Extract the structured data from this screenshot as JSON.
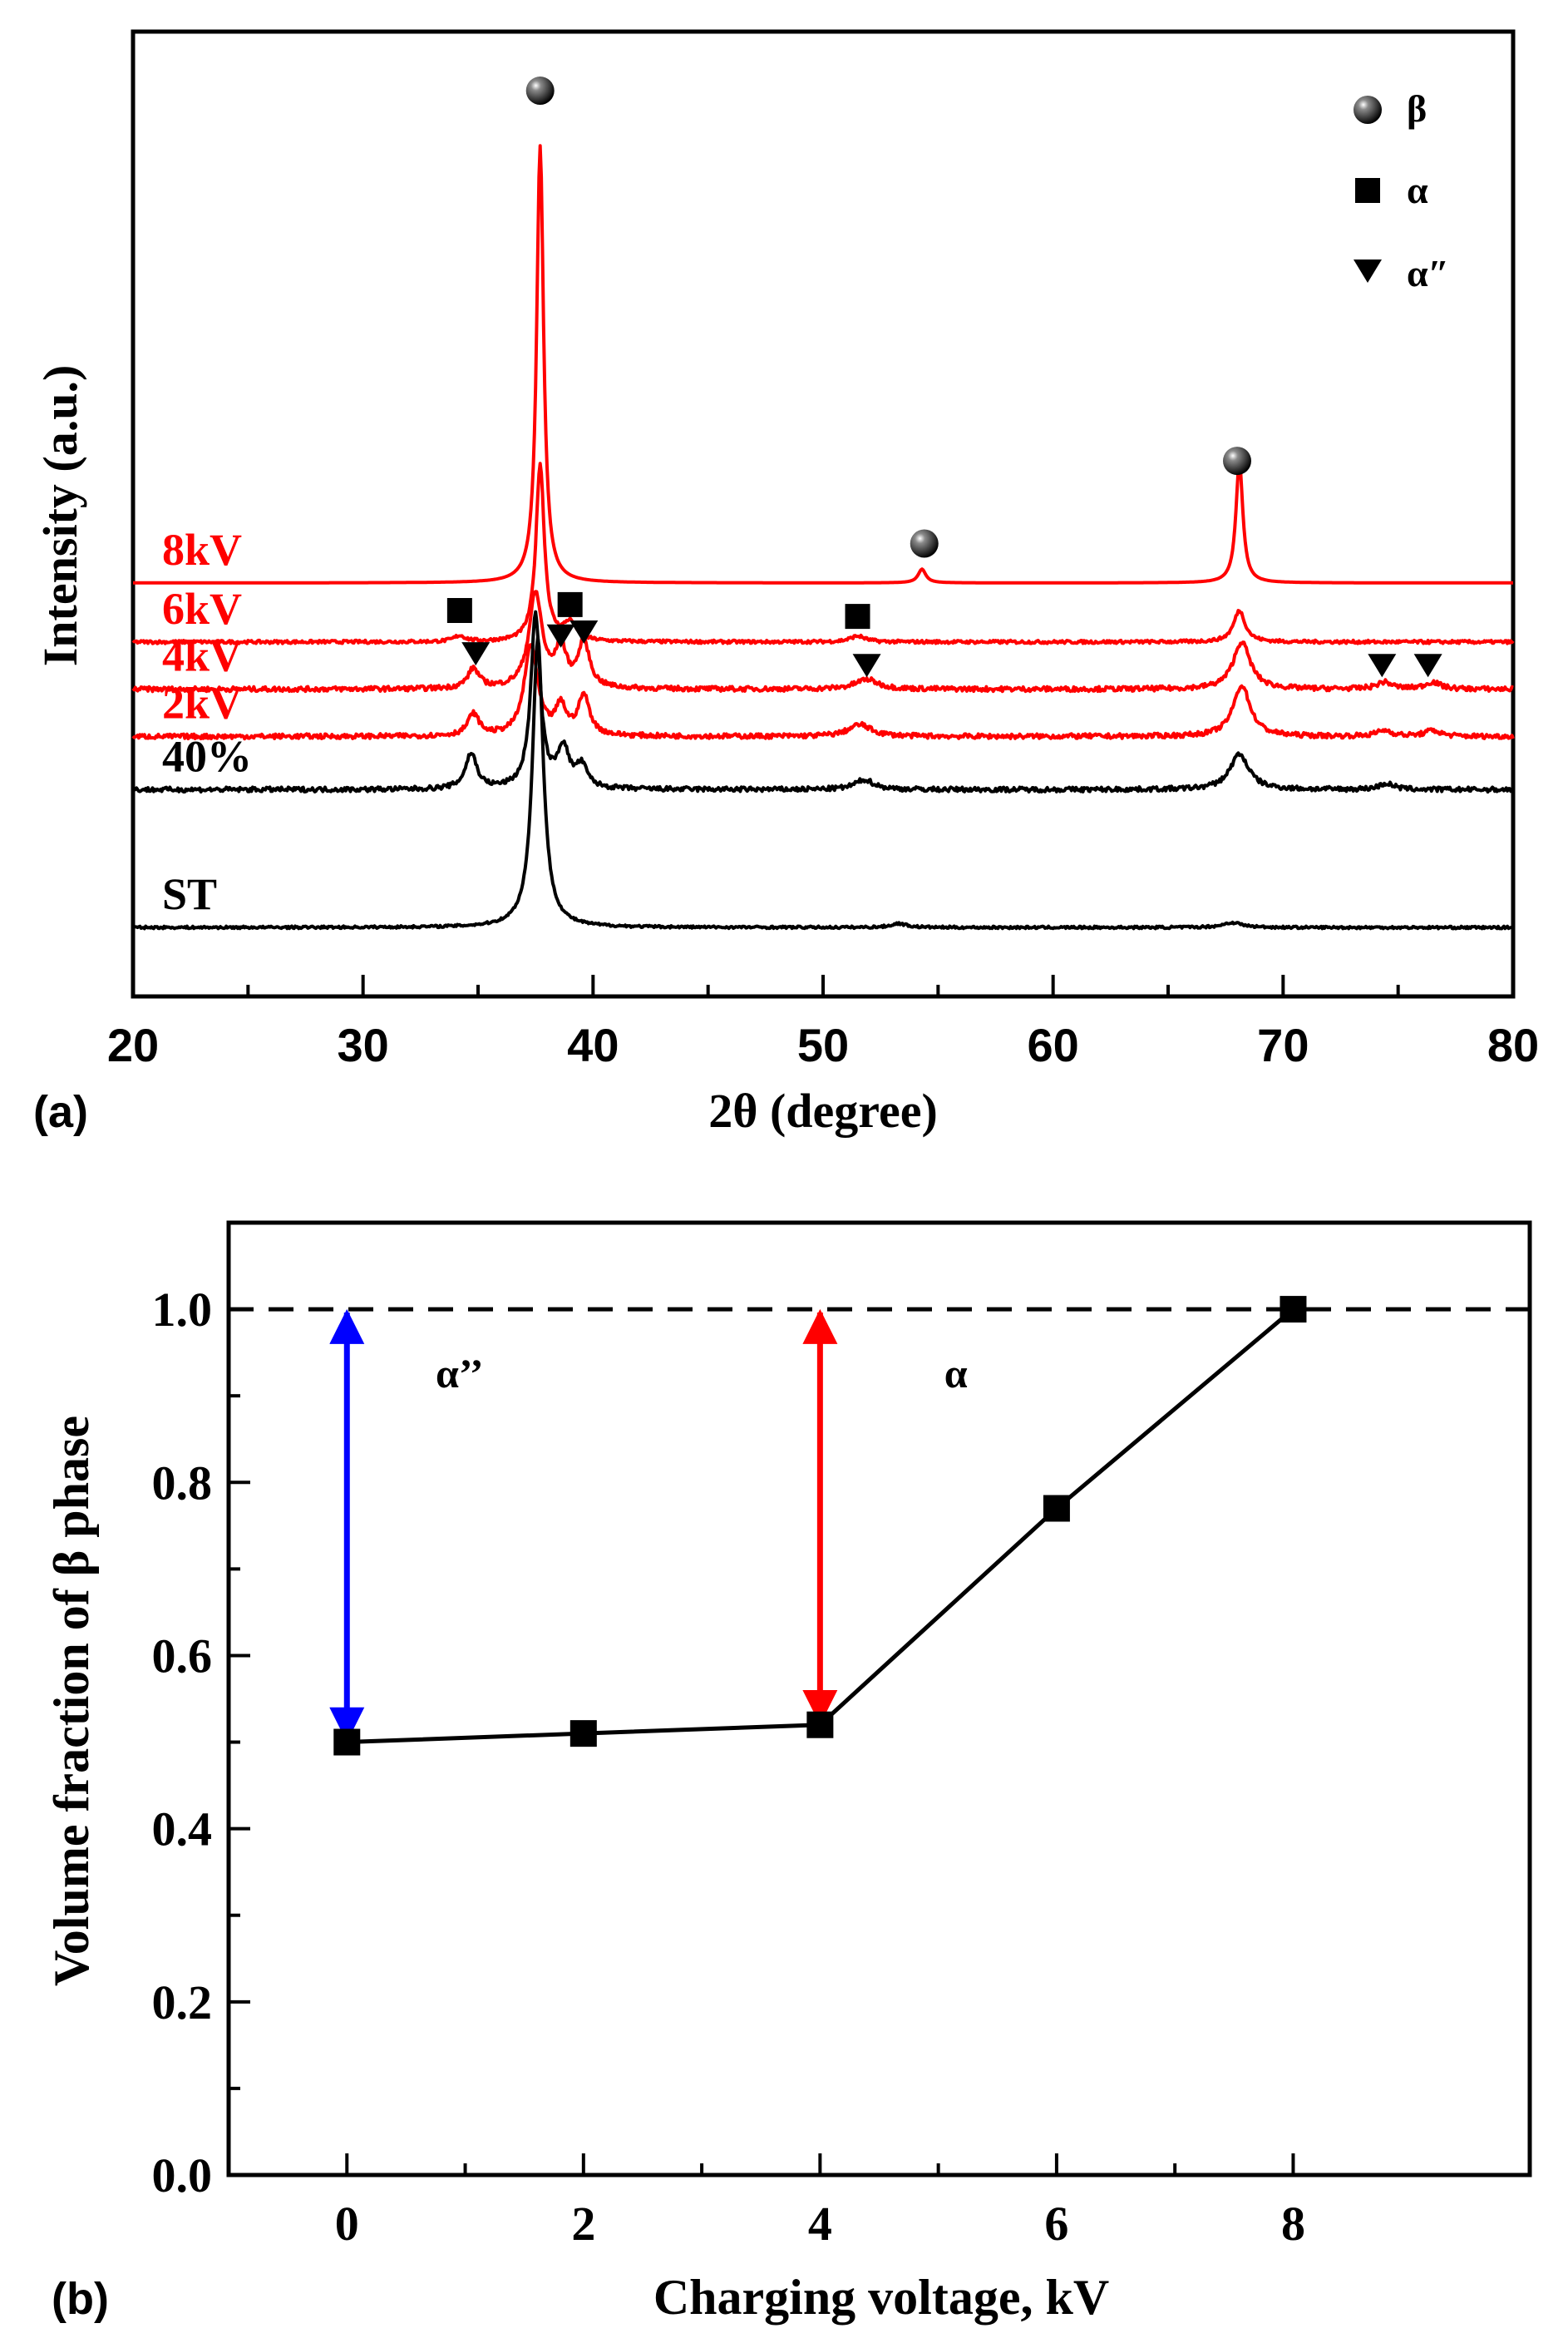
{
  "chart_data": [
    {
      "type": "line",
      "panel_label": "(a)",
      "xlabel": "2θ (degree)",
      "ylabel": "Intensity (a.u.)",
      "xlim": [
        20,
        80
      ],
      "xticks": [
        "20",
        "30",
        "40",
        "50",
        "60",
        "70",
        "80"
      ],
      "legend": {
        "position": "top-right",
        "entries": [
          {
            "symbol": "circle",
            "label": "β"
          },
          {
            "symbol": "square",
            "label": "α"
          },
          {
            "symbol": "triangle",
            "label": "α″"
          }
        ]
      },
      "series": [
        {
          "name": "8kV",
          "color": "#ff0000",
          "baseline": 8,
          "noise": 0,
          "peaks": [
            {
              "x": 37.7,
              "h": 22.2,
              "w": 0.18
            },
            {
              "x": 54.3,
              "h": 0.7,
              "w": 0.2
            },
            {
              "x": 68.1,
              "h": 6.2,
              "w": 0.18
            }
          ],
          "markers": [
            {
              "x": 37.7,
              "y": 33.0,
              "symbol": "circle"
            },
            {
              "x": 54.4,
              "y": 10.0,
              "symbol": "circle"
            },
            {
              "x": 68.0,
              "y": 14.2,
              "symbol": "circle"
            }
          ]
        },
        {
          "name": "6kV",
          "color": "#ff0000",
          "baseline": 5.0,
          "noise": 0.08,
          "peaks": [
            {
              "x": 37.7,
              "h": 9.0,
              "w": 0.22
            },
            {
              "x": 39.0,
              "h": 0.9,
              "w": 0.35
            },
            {
              "x": 34.2,
              "h": 0.3,
              "w": 0.3
            },
            {
              "x": 51.5,
              "h": 0.3,
              "w": 0.4
            },
            {
              "x": 68.1,
              "h": 1.6,
              "w": 0.3
            }
          ],
          "markers": [
            {
              "x": 34.2,
              "y": 6.6,
              "symbol": "square"
            },
            {
              "x": 39.0,
              "y": 6.9,
              "symbol": "square"
            },
            {
              "x": 51.5,
              "y": 6.3,
              "symbol": "square"
            }
          ]
        },
        {
          "name": "4kV",
          "color": "#ff0000",
          "baseline": 2.6,
          "noise": 0.12,
          "peaks": [
            {
              "x": 37.5,
              "h": 4.8,
              "w": 0.35
            },
            {
              "x": 38.6,
              "h": 2.0,
              "w": 0.28
            },
            {
              "x": 39.6,
              "h": 2.3,
              "w": 0.3
            },
            {
              "x": 34.8,
              "h": 1.0,
              "w": 0.3
            },
            {
              "x": 51.9,
              "h": 0.5,
              "w": 0.6
            },
            {
              "x": 68.2,
              "h": 2.4,
              "w": 0.45
            },
            {
              "x": 74.4,
              "h": 0.35,
              "w": 0.4
            },
            {
              "x": 76.5,
              "h": 0.35,
              "w": 0.4
            }
          ],
          "markers": [
            {
              "x": 34.9,
              "y": 4.4,
              "symbol": "triangle"
            },
            {
              "x": 38.6,
              "y": 5.3,
              "symbol": "triangle"
            },
            {
              "x": 39.6,
              "y": 5.5,
              "symbol": "triangle"
            },
            {
              "x": 51.9,
              "y": 3.8,
              "symbol": "triangle"
            },
            {
              "x": 74.3,
              "y": 3.8,
              "symbol": "triangle"
            },
            {
              "x": 76.3,
              "y": 3.8,
              "symbol": "triangle"
            }
          ]
        },
        {
          "name": "2kV",
          "color": "#ff0000",
          "baseline": 0.2,
          "noise": 0.12,
          "peaks": [
            {
              "x": 37.3,
              "h": 4.6,
              "w": 0.35
            },
            {
              "x": 38.6,
              "h": 1.4,
              "w": 0.28
            },
            {
              "x": 39.6,
              "h": 2.0,
              "w": 0.3
            },
            {
              "x": 34.8,
              "h": 1.1,
              "w": 0.3
            },
            {
              "x": 51.6,
              "h": 0.6,
              "w": 0.6
            },
            {
              "x": 68.2,
              "h": 2.6,
              "w": 0.45
            },
            {
              "x": 74.4,
              "h": 0.3,
              "w": 0.4
            },
            {
              "x": 76.5,
              "h": 0.3,
              "w": 0.4
            }
          ],
          "markers": []
        },
        {
          "name": "40%",
          "color": "#000000",
          "baseline": -2.5,
          "noise": 0.12,
          "peaks": [
            {
              "x": 37.5,
              "h": 8.8,
              "w": 0.25
            },
            {
              "x": 38.7,
              "h": 2.0,
              "w": 0.3
            },
            {
              "x": 39.5,
              "h": 1.1,
              "w": 0.3
            },
            {
              "x": 34.7,
              "h": 1.8,
              "w": 0.3
            },
            {
              "x": 51.8,
              "h": 0.5,
              "w": 0.5
            },
            {
              "x": 68.1,
              "h": 1.8,
              "w": 0.5
            },
            {
              "x": 74.5,
              "h": 0.3,
              "w": 0.4
            }
          ],
          "markers": []
        },
        {
          "name": "ST",
          "color": "#000000",
          "baseline": -9.5,
          "noise": 0.06,
          "peaks": [
            {
              "x": 37.6,
              "h": 14.7,
              "w": 0.28
            },
            {
              "x": 53.3,
              "h": 0.2,
              "w": 0.4
            },
            {
              "x": 67.8,
              "h": 0.25,
              "w": 0.5
            }
          ],
          "markers": []
        }
      ]
    },
    {
      "type": "line",
      "panel_label": "(b)",
      "xlabel": "Charging voltage, kV",
      "ylabel": "Volume fraction of β phase",
      "xlim": [
        -1,
        10
      ],
      "ylim": [
        0.0,
        1.1
      ],
      "xticks": [
        "0",
        "2",
        "4",
        "6",
        "8"
      ],
      "yticks": [
        "0.0",
        "0.2",
        "0.4",
        "0.6",
        "0.8",
        "1.0"
      ],
      "series": [
        {
          "name": "Volume fraction of β phase",
          "x": [
            0,
            2,
            4,
            6,
            8
          ],
          "y": [
            0.5,
            0.51,
            0.52,
            0.77,
            1.0
          ],
          "color": "#000000",
          "marker": "square"
        }
      ],
      "reference_line": {
        "y": 1.0,
        "style": "dashed"
      },
      "arrows": [
        {
          "x": 0,
          "y_from": 0.5,
          "y_to": 1.0,
          "color": "#0000ff",
          "label": "α’’"
        },
        {
          "x": 4,
          "y_from": 0.52,
          "y_to": 1.0,
          "color": "#ff0000",
          "label": "α"
        }
      ]
    }
  ]
}
